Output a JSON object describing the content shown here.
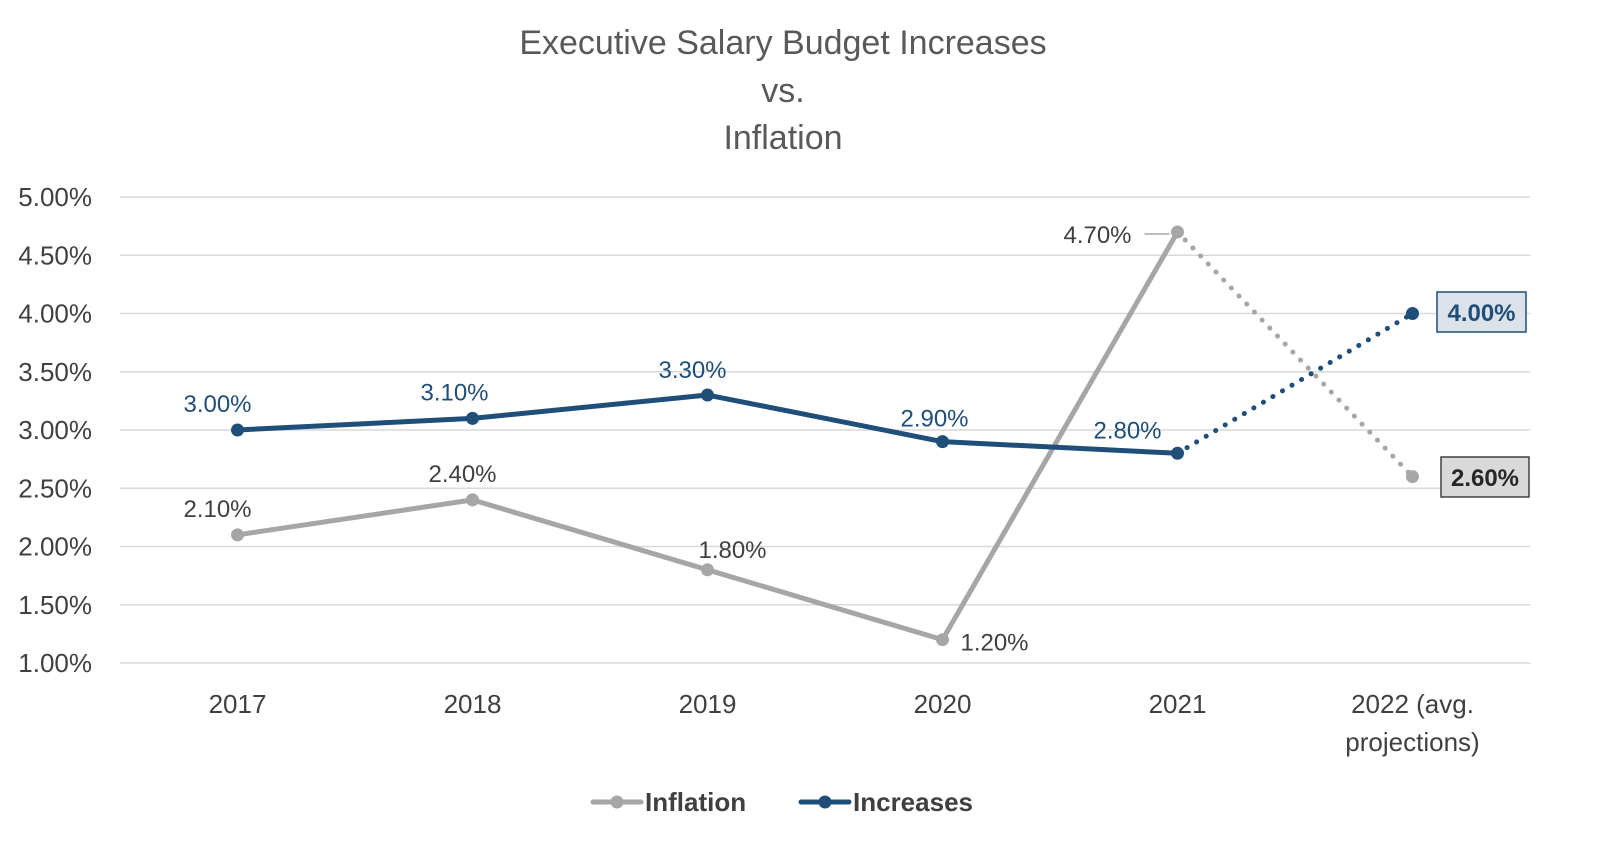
{
  "chart_data": {
    "type": "line",
    "title": [
      "Executive Salary Budget Increases",
      "vs.",
      "Inflation"
    ],
    "categories": [
      "2017",
      "2018",
      "2019",
      "2020",
      "2021",
      [
        "2022 (avg.",
        "projections)"
      ]
    ],
    "ylim": [
      0.01,
      0.05
    ],
    "yticks": [
      "1.00%",
      "1.50%",
      "2.00%",
      "2.50%",
      "3.00%",
      "3.50%",
      "4.00%",
      "4.50%",
      "5.00%"
    ],
    "grid": true,
    "legend_position": "bottom",
    "series": [
      {
        "name": "Inflation",
        "color": "#a6a6a6",
        "label_color": "#404040",
        "values": [
          0.021,
          0.024,
          0.018,
          0.012,
          0.047,
          0.026
        ],
        "labels": [
          "2.10%",
          "2.40%",
          "1.80%",
          "1.20%",
          "4.70%",
          "2.60%"
        ],
        "projected_from_index": 4
      },
      {
        "name": "Increases",
        "color": "#1f4e79",
        "label_color": "#1f4e79",
        "values": [
          0.03,
          0.031,
          0.033,
          0.029,
          0.028,
          0.04
        ],
        "labels": [
          "3.00%",
          "3.10%",
          "3.30%",
          "2.90%",
          "2.80%",
          "4.00%"
        ],
        "projected_from_index": 4
      }
    ]
  }
}
